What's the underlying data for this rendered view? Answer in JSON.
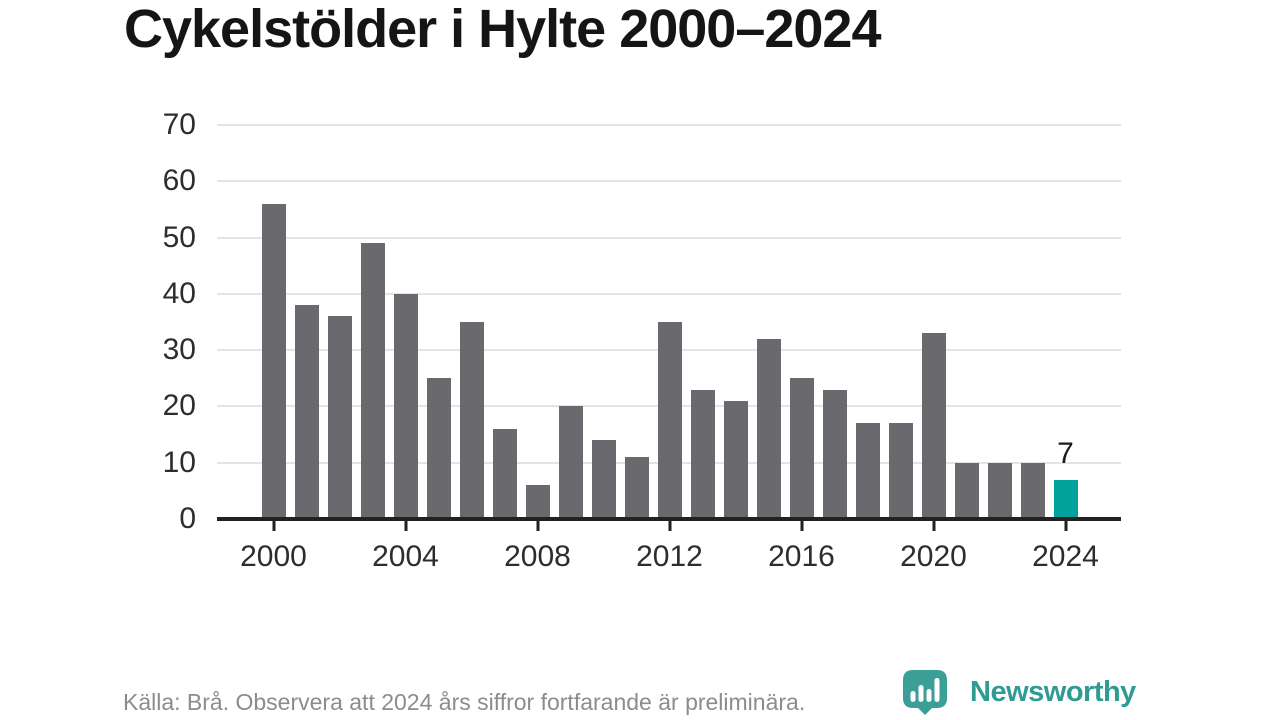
{
  "header": {
    "title": "Cykelstölder i Hylte 2000–2024"
  },
  "chart_data": {
    "type": "bar",
    "title": "Cykelstölder i Hylte 2000–2024",
    "categories": [
      "2000",
      "2001",
      "2002",
      "2003",
      "2004",
      "2005",
      "2006",
      "2007",
      "2008",
      "2009",
      "2010",
      "2011",
      "2012",
      "2013",
      "2014",
      "2015",
      "2016",
      "2017",
      "2018",
      "2019",
      "2020",
      "2021",
      "2022",
      "2023",
      "2024"
    ],
    "values": [
      56,
      38,
      36,
      49,
      40,
      25,
      35,
      16,
      6,
      20,
      14,
      11,
      35,
      23,
      21,
      32,
      25,
      23,
      17,
      17,
      33,
      10,
      10,
      10,
      7
    ],
    "xlabel": "",
    "ylabel": "",
    "ylim": [
      0,
      70
    ],
    "y_ticks": [
      0,
      10,
      20,
      30,
      40,
      50,
      60,
      70
    ],
    "x_tick_labels": [
      "2000",
      "2004",
      "2008",
      "2012",
      "2016",
      "2020",
      "2024"
    ],
    "grid": "horizontal",
    "legend": "none",
    "bar_color": "#6a696e",
    "highlight_index": 24,
    "highlight_color": "#00a29a",
    "annotation": {
      "index": 24,
      "label": "7"
    }
  },
  "footer": {
    "source_note": "Källa: Brå. Observera att 2024 års siffror fortfarande är preliminära."
  },
  "logo": {
    "wordmark": "Newsworthy",
    "icon": "newsworthy-pin-chart-icon",
    "icon_color": "#3b9e97",
    "wordmark_color": "#2f9c94"
  }
}
